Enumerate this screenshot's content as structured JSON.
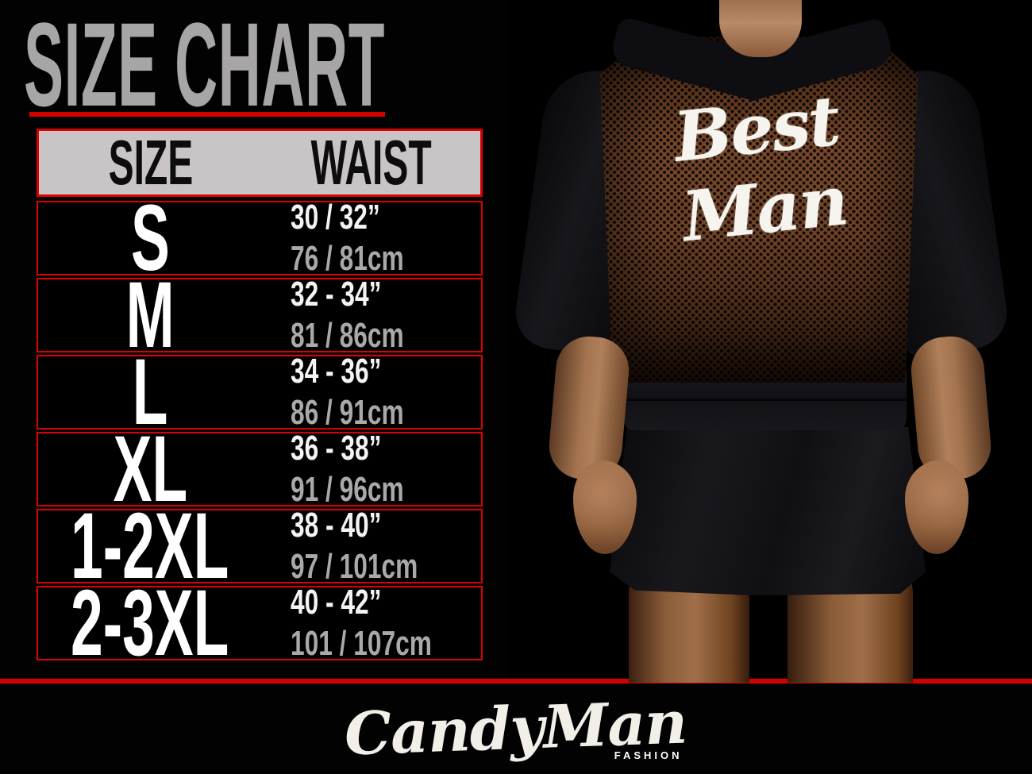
{
  "title": "SIZE CHART",
  "table": {
    "headers": {
      "size": "SIZE",
      "waist": "WAIST"
    },
    "rows": [
      {
        "size": "S",
        "waist_in": "30 / 32”",
        "waist_cm": "76 / 81cm"
      },
      {
        "size": "M",
        "waist_in": "32 - 34”",
        "waist_cm": "81 / 86cm"
      },
      {
        "size": "L",
        "waist_in": "34 - 36”",
        "waist_cm": "86 / 91cm"
      },
      {
        "size": "XL",
        "waist_in": "36 - 38”",
        "waist_cm": "91 / 96cm"
      },
      {
        "size": "1-2XL",
        "waist_in": "38 - 40”",
        "waist_cm": "97 / 101cm"
      },
      {
        "size": "2-3XL",
        "waist_in": "40 - 42”",
        "waist_cm": "101 / 107cm"
      }
    ]
  },
  "photo": {
    "garment_text": "Best Man"
  },
  "footer": {
    "brand": "CandyMan",
    "brand_sub": "FASHION"
  },
  "colors": {
    "background": "#000000",
    "accent_red": "#dd0000",
    "title_gray": "#a7a5a6",
    "header_bg": "#c9c5c6",
    "size_white": "#ffffff",
    "cm_gray": "#a9a9a9",
    "mesh_brown": "#6b3e26"
  },
  "chart_data": {
    "type": "table",
    "title": "SIZE CHART",
    "columns": [
      "SIZE",
      "WAIST"
    ],
    "rows": [
      [
        "S",
        "30 / 32”",
        "76 / 81cm"
      ],
      [
        "M",
        "32 - 34”",
        "81 / 86cm"
      ],
      [
        "L",
        "34 - 36”",
        "86 / 91cm"
      ],
      [
        "XL",
        "36 - 38”",
        "91 / 96cm"
      ],
      [
        "1-2XL",
        "38 - 40”",
        "97 / 101cm"
      ],
      [
        "2-3XL",
        "40 - 42”",
        "101 / 107cm"
      ]
    ]
  }
}
